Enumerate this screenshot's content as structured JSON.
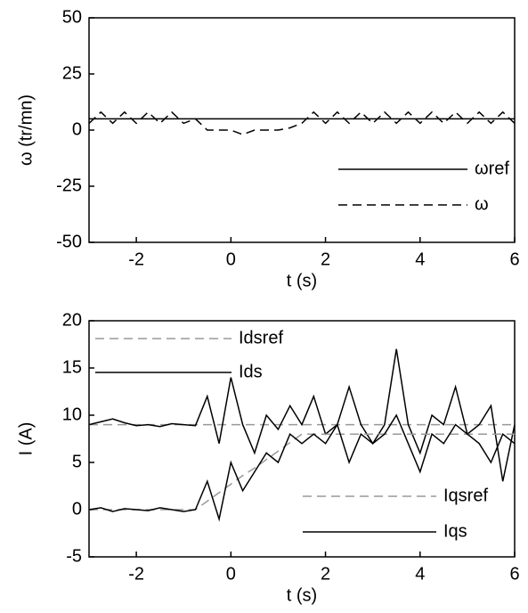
{
  "chart_data": [
    {
      "type": "line",
      "xlabel": "t (s)",
      "ylabel": "ω (tr/mn)",
      "x": [
        -3,
        -2.75,
        -2.5,
        -2.25,
        -2,
        -1.75,
        -1.5,
        -1.25,
        -1,
        -0.75,
        -0.5,
        -0.25,
        0,
        0.25,
        0.5,
        0.75,
        1,
        1.25,
        1.5,
        1.75,
        2,
        2.25,
        2.5,
        2.75,
        3,
        3.25,
        3.5,
        3.75,
        4,
        4.25,
        4.5,
        4.75,
        5,
        5.25,
        5.5,
        5.75,
        6
      ],
      "series": [
        {
          "name": "ωref",
          "color": "#000000",
          "linestyle": "solid",
          "values": [
            5,
            5,
            5,
            5,
            5,
            5,
            5,
            5,
            5,
            5,
            5,
            5,
            5,
            5,
            5,
            5,
            5,
            5,
            5,
            5,
            5,
            5,
            5,
            5,
            5,
            5,
            5,
            5,
            5,
            5,
            5,
            5,
            5,
            5,
            5,
            5,
            5
          ]
        },
        {
          "name": "ω",
          "color": "#000000",
          "linestyle": "dashed",
          "values": [
            3,
            8,
            3,
            8,
            3,
            8,
            3,
            8,
            3,
            5,
            0,
            0,
            0,
            -2,
            0,
            0,
            0,
            1,
            3,
            8,
            3,
            8,
            3,
            8,
            3,
            8,
            3,
            8,
            3,
            8,
            3,
            8,
            3,
            8,
            3,
            8,
            3
          ]
        }
      ],
      "xlim": [
        -3,
        6
      ],
      "xticks": [
        -2,
        0,
        2,
        4,
        6
      ],
      "ylim": [
        -50,
        50
      ],
      "yticks": [
        -50,
        -25,
        0,
        25,
        50
      ],
      "legend": "lower right"
    },
    {
      "type": "line",
      "xlabel": "t (s)",
      "ylabel": "I (A)",
      "x": [
        -3,
        -2.75,
        -2.5,
        -2.25,
        -2,
        -1.75,
        -1.5,
        -1.25,
        -1,
        -0.75,
        -0.5,
        -0.25,
        0,
        0.25,
        0.5,
        0.75,
        1,
        1.25,
        1.5,
        1.75,
        2,
        2.25,
        2.5,
        2.75,
        3,
        3.25,
        3.5,
        3.75,
        4,
        4.25,
        4.5,
        4.75,
        5,
        5.25,
        5.5,
        5.75,
        6
      ],
      "series": [
        {
          "name": "Idsref",
          "color": "#999999",
          "linestyle": "dashed",
          "values": [
            9,
            9,
            9,
            9,
            9,
            9,
            9,
            9,
            9,
            9,
            9,
            9,
            9,
            9,
            9,
            9,
            9,
            9,
            9,
            9,
            9,
            9,
            9,
            9,
            9,
            9,
            9,
            9,
            9,
            9,
            9,
            9,
            9,
            9,
            9,
            9,
            9
          ]
        },
        {
          "name": "Ids",
          "color": "#000000",
          "linestyle": "solid",
          "values": [
            9,
            9.3,
            9.6,
            9.2,
            8.9,
            9,
            8.8,
            9.1,
            9,
            8.9,
            12,
            7,
            14,
            9,
            6,
            10,
            8.5,
            11,
            9,
            12,
            8,
            9,
            13,
            9,
            7,
            9,
            17,
            9,
            6,
            10,
            9,
            13,
            8,
            9,
            11,
            3,
            9
          ]
        },
        {
          "name": "Iqsref",
          "color": "#999999",
          "linestyle": "dashed",
          "values": [
            0,
            0,
            0,
            0,
            0,
            0,
            0,
            0,
            0,
            0,
            0.9,
            1.8,
            2.7,
            3.6,
            4.4,
            5.3,
            6.2,
            7.1,
            8,
            8,
            8,
            8,
            8,
            8,
            8,
            8,
            8,
            8,
            8,
            8,
            8,
            8,
            8,
            8,
            8,
            8,
            8
          ]
        },
        {
          "name": "Iqs",
          "color": "#000000",
          "linestyle": "solid",
          "values": [
            0,
            0.2,
            -0.2,
            0.1,
            0,
            -0.1,
            0.2,
            0,
            -0.2,
            0,
            3,
            -1,
            5,
            2,
            4,
            6,
            5,
            8,
            7,
            8,
            7,
            9,
            5,
            8,
            7,
            8,
            10,
            7,
            4,
            8,
            7,
            9,
            8,
            7,
            5,
            8,
            7
          ]
        }
      ],
      "xlim": [
        -3,
        6
      ],
      "xticks": [
        -2,
        0,
        2,
        4,
        6
      ],
      "ylim": [
        -5,
        20
      ],
      "yticks": [
        -5,
        0,
        5,
        10,
        15,
        20
      ]
    }
  ]
}
